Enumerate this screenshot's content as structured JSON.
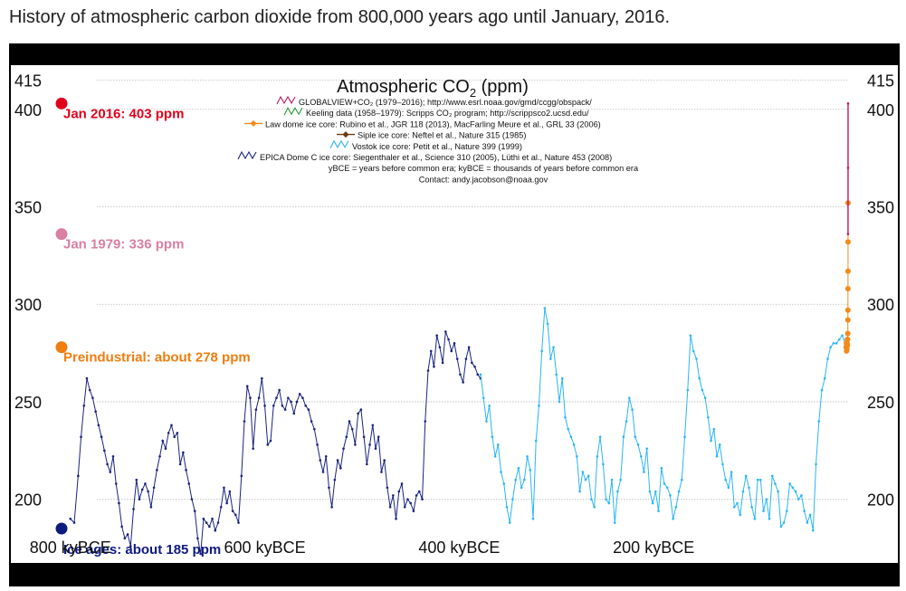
{
  "caption": "History of atmospheric carbon dioxide from 800,000 years ago until January, 2016.",
  "chart_data": {
    "type": "line",
    "title": "Atmospheric CO",
    "title_sub": "2",
    "title_unit": " (ppm)",
    "xlabel": "",
    "ylabel": "",
    "xlim": [
      -810,
      0
    ],
    "ylim": [
      172,
      418
    ],
    "x_ticks": [
      {
        "value": -800,
        "label": "800 kyBCE"
      },
      {
        "value": -600,
        "label": "600 kyBCE"
      },
      {
        "value": -400,
        "label": "400 kyBCE"
      },
      {
        "value": -200,
        "label": "200 kyBCE"
      }
    ],
    "y_ticks": [
      {
        "value": 415,
        "label": "415"
      },
      {
        "value": 400,
        "label": "400"
      },
      {
        "value": 350,
        "label": "350"
      },
      {
        "value": 300,
        "label": "300"
      },
      {
        "value": 250,
        "label": "250"
      },
      {
        "value": 200,
        "label": "200"
      }
    ],
    "grid": true,
    "legend": [
      {
        "text": "GLOBALVIEW+CO₂ (1979–2016); http://www.esrl.noaa.gov/gmd/ccgg/obspack/",
        "color": "#c2185b",
        "marker": "wave"
      },
      {
        "text": "Keeling data (1958–1979): Scripps CO₂ program; http://scrippsco2.ucsd.edu/",
        "color": "#2e9b3a",
        "marker": "wave"
      },
      {
        "text": "Law dome ice core:  Rubino et al., JGR 118 (2013), MacFarling Meure et al., GRL 33 (2006)",
        "color": "#f28a1b",
        "marker": "diamond"
      },
      {
        "text": "Siple ice core:  Neftel et al., Nature 315 (1985)",
        "color": "#6b3a12",
        "marker": "diamond"
      },
      {
        "text": "Vostok ice core:  Petit et al., Nature 399 (1999)",
        "color": "#29b6f6",
        "marker": "wave"
      },
      {
        "text": "EPICA Dome C ice core:  Siegenthaler et al., Science 310 (2005), Lüthi et al., Nature 453 (2008)",
        "color": "#1a237e",
        "marker": "wave"
      }
    ],
    "notes": [
      "yBCE = years before common era; kyBCE = thousands of years before common era",
      "Contact: andy.jacobson@noaa.gov"
    ],
    "annotations": [
      {
        "text": "Jan 2016: 403 ppm",
        "value": 403,
        "color": "#e0001b"
      },
      {
        "text": "Jan 1979: 336 ppm",
        "value": 336,
        "color": "#d97fa0"
      },
      {
        "text": "Preindustrial: about 278 ppm",
        "value": 278,
        "color": "#ef7d0f"
      },
      {
        "text": "Ice ages: about 185 ppm",
        "value": 185,
        "color": "#0d1a80"
      }
    ],
    "series": [
      {
        "name": "EPICA Dome C ice core",
        "color": "#1a237e",
        "x": [
          -800,
          -796,
          -792,
          -789,
          -786,
          -783,
          -780,
          -777,
          -774,
          -771,
          -768,
          -765,
          -762,
          -759,
          -756,
          -753,
          -750,
          -747,
          -744,
          -741,
          -738,
          -735,
          -732,
          -729,
          -726,
          -723,
          -720,
          -717,
          -714,
          -711,
          -708,
          -705,
          -702,
          -699,
          -696,
          -693,
          -690,
          -687,
          -684,
          -681,
          -678,
          -675,
          -672,
          -669,
          -666,
          -663,
          -660,
          -657,
          -654,
          -651,
          -648,
          -645,
          -642,
          -639,
          -636,
          -633,
          -630,
          -627,
          -624,
          -621,
          -618,
          -615,
          -612,
          -609,
          -606,
          -603,
          -600,
          -597,
          -594,
          -591,
          -588,
          -585,
          -582,
          -579,
          -576,
          -573,
          -570,
          -567,
          -564,
          -561,
          -558,
          -555,
          -552,
          -549,
          -546,
          -543,
          -540,
          -537,
          -534,
          -531,
          -528,
          -525,
          -522,
          -519,
          -516,
          -513,
          -510,
          -507,
          -504,
          -501,
          -498,
          -495,
          -492,
          -489,
          -486,
          -483,
          -480,
          -477,
          -474,
          -471,
          -468,
          -465,
          -462,
          -459,
          -456,
          -453,
          -450,
          -447,
          -444,
          -441,
          -438,
          -435,
          -432,
          -429,
          -426,
          -423,
          -420,
          -417,
          -414,
          -411,
          -408,
          -405,
          -402,
          -399,
          -396,
          -393,
          -390,
          -387,
          -384,
          -381,
          -378
        ],
        "y": [
          190,
          188,
          212,
          232,
          248,
          262,
          256,
          252,
          245,
          238,
          232,
          225,
          218,
          214,
          222,
          208,
          198,
          186,
          180,
          182,
          176,
          195,
          210,
          200,
          205,
          208,
          204,
          196,
          206,
          215,
          222,
          230,
          226,
          234,
          238,
          232,
          234,
          218,
          224,
          215,
          208,
          200,
          194,
          180,
          172,
          190,
          188,
          186,
          190,
          184,
          188,
          196,
          206,
          198,
          204,
          194,
          192,
          188,
          212,
          240,
          258,
          252,
          226,
          246,
          252,
          262,
          248,
          228,
          230,
          248,
          252,
          256,
          248,
          246,
          252,
          250,
          244,
          250,
          254,
          252,
          248,
          246,
          240,
          236,
          228,
          220,
          214,
          222,
          206,
          196,
          210,
          220,
          216,
          226,
          232,
          240,
          236,
          228,
          244,
          246,
          232,
          218,
          228,
          238,
          226,
          232,
          214,
          220,
          206,
          196,
          202,
          190,
          204,
          208,
          196,
          200,
          198,
          194,
          202,
          204,
          200,
          240,
          266,
          276,
          268,
          284,
          278,
          270,
          286,
          282,
          276,
          280,
          272,
          264,
          260,
          272,
          278,
          270,
          268,
          264,
          262
        ]
      },
      {
        "name": "Vostok ice core",
        "color": "#29b6f6",
        "x": [
          -378,
          -375,
          -372,
          -369,
          -366,
          -363,
          -360,
          -357,
          -354,
          -351,
          -348,
          -345,
          -342,
          -339,
          -336,
          -333,
          -330,
          -327,
          -324,
          -321,
          -318,
          -315,
          -312,
          -309,
          -306,
          -303,
          -300,
          -297,
          -294,
          -291,
          -288,
          -285,
          -282,
          -279,
          -276,
          -273,
          -270,
          -267,
          -264,
          -261,
          -258,
          -255,
          -252,
          -249,
          -246,
          -243,
          -240,
          -237,
          -234,
          -231,
          -228,
          -225,
          -222,
          -219,
          -216,
          -213,
          -210,
          -207,
          -204,
          -201,
          -198,
          -195,
          -192,
          -189,
          -186,
          -183,
          -180,
          -177,
          -174,
          -171,
          -168,
          -165,
          -162,
          -159,
          -156,
          -153,
          -150,
          -147,
          -144,
          -141,
          -138,
          -135,
          -132,
          -129,
          -126,
          -123,
          -120,
          -117,
          -114,
          -111,
          -108,
          -105,
          -102,
          -99,
          -96,
          -93,
          -90,
          -87,
          -84,
          -81,
          -78,
          -75,
          -72,
          -69,
          -66,
          -63,
          -60,
          -57,
          -54,
          -51,
          -48,
          -45,
          -42,
          -39,
          -36,
          -33,
          -30,
          -27,
          -24,
          -21,
          -18,
          -15,
          -12,
          -9,
          -6,
          -3
        ],
        "y": [
          264,
          252,
          240,
          248,
          232,
          222,
          228,
          214,
          208,
          196,
          188,
          200,
          210,
          216,
          206,
          210,
          222,
          215,
          190,
          230,
          248,
          276,
          298,
          290,
          272,
          278,
          264,
          250,
          262,
          242,
          236,
          232,
          228,
          222,
          204,
          214,
          210,
          212,
          200,
          196,
          222,
          232,
          218,
          200,
          198,
          210,
          188,
          204,
          210,
          232,
          240,
          252,
          246,
          232,
          228,
          222,
          214,
          226,
          204,
          198,
          204,
          194,
          216,
          208,
          206,
          202,
          190,
          196,
          204,
          210,
          232,
          256,
          284,
          276,
          272,
          262,
          256,
          252,
          242,
          230,
          236,
          222,
          228,
          218,
          210,
          206,
          214,
          196,
          198,
          192,
          204,
          212,
          206,
          196,
          190,
          210,
          210,
          194,
          200,
          190,
          212,
          208,
          204,
          186,
          188,
          194,
          208,
          206,
          204,
          200,
          202,
          194,
          188,
          192,
          184,
          218,
          240,
          256,
          262,
          272,
          278,
          280,
          280,
          282,
          284,
          280
        ]
      },
      {
        "name": "Law dome ice core",
        "color": "#f28a1b",
        "x": [
          -2,
          -1.8,
          -1.6,
          -1.4,
          -1.2,
          -1.0,
          -0.8,
          -0.6,
          -0.4,
          -0.3,
          -0.2,
          -0.15,
          -0.1,
          -0.06,
          -0.03,
          -0.01
        ],
        "y": [
          278,
          280,
          276,
          279,
          277,
          280,
          282,
          279,
          282,
          285,
          292,
          297,
          308,
          317,
          332,
          352
        ]
      },
      {
        "name": "GLOBALVIEW+CO2",
        "color": "#c2185b",
        "x": [
          -0.04,
          -0.02,
          0
        ],
        "y": [
          336,
          370,
          403
        ]
      }
    ]
  }
}
